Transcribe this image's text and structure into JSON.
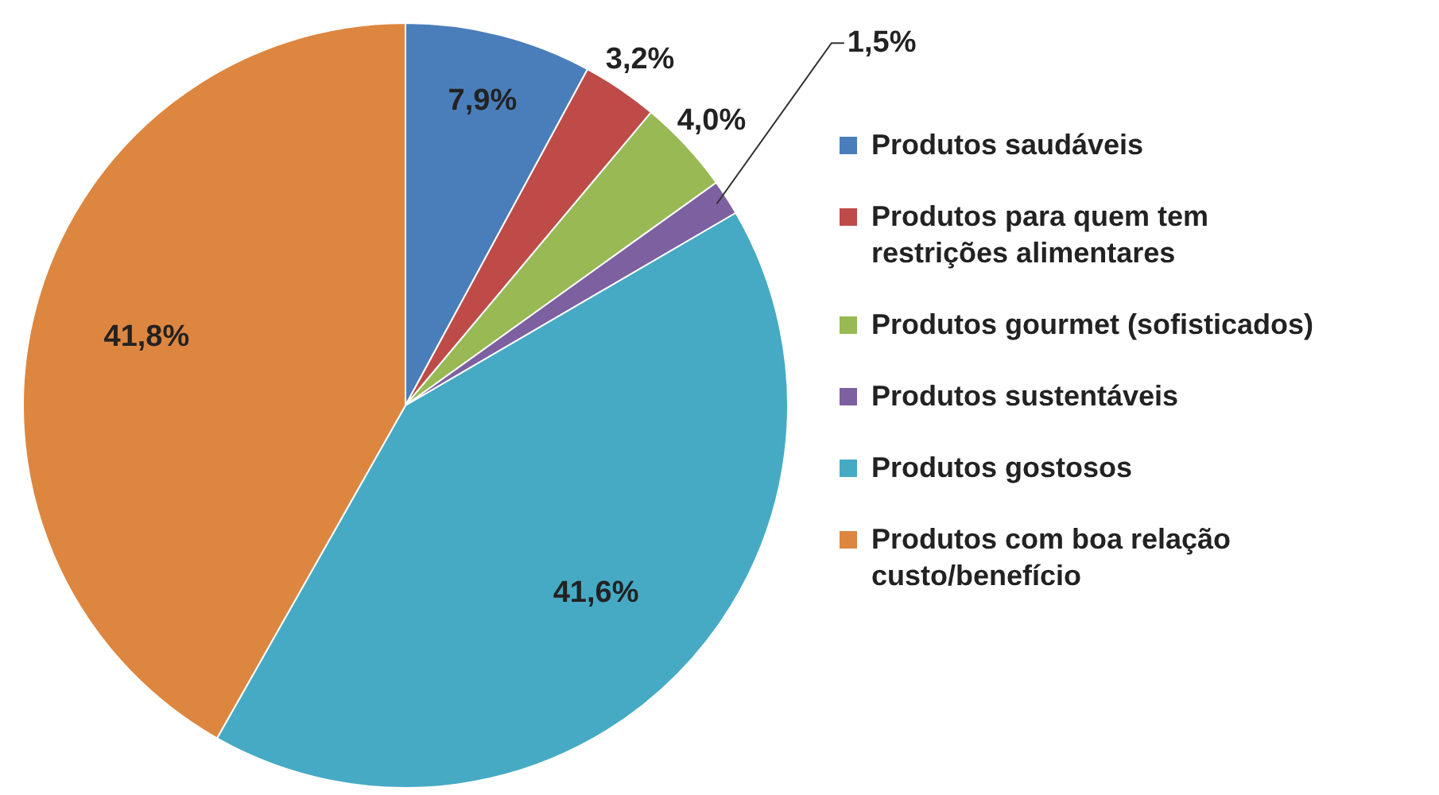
{
  "chart_data": {
    "type": "pie",
    "categories": [
      "Produtos saudáveis",
      "Produtos para quem tem restrições alimentares",
      "Produtos gourmet (sofisticados)",
      "Produtos sustentáveis",
      "Produtos gostosos",
      "Produtos com boa relação custo/benefício"
    ],
    "values": [
      7.9,
      3.2,
      4.0,
      1.5,
      41.6,
      41.8
    ],
    "value_labels": [
      "7,9%",
      "3,2%",
      "4,0%",
      "1,5%",
      "41,6%",
      "41,8%"
    ],
    "colors": [
      "#4a7ebb",
      "#be4b48",
      "#98b954",
      "#7d60a0",
      "#46aac5",
      "#dd8640"
    ],
    "legend": "right"
  }
}
